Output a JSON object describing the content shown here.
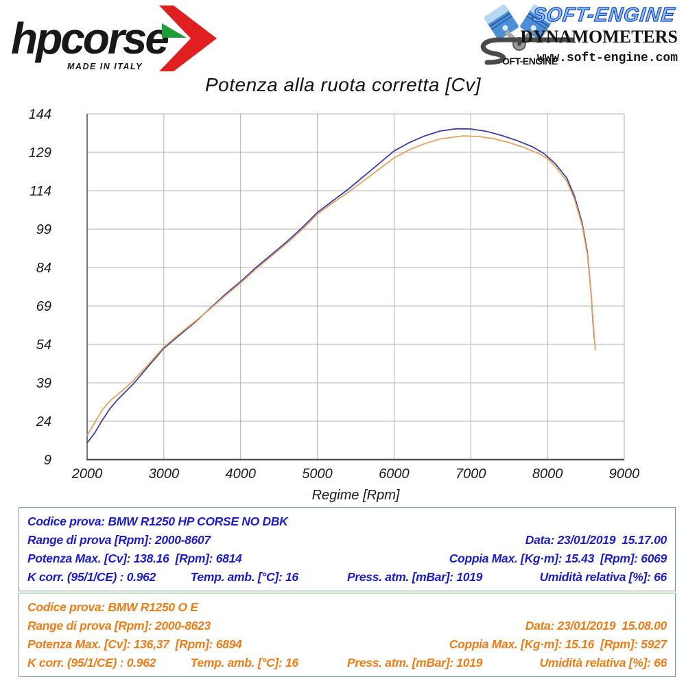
{
  "header": {
    "hpcorse": {
      "wordmark": "hpcorse",
      "made_in": "MADE IN ITALY",
      "arrow_red": "#e02020",
      "arrow_green": "#1f9b3a"
    },
    "softengine": {
      "brand": "SOFT-ENGINE",
      "s_tail_text": "OFT-ENGINE",
      "line2": "DYNAMOMETERS",
      "line3": "www.soft-engine.com",
      "brand_fill": "#8fc1f0",
      "brand_outline": "#1a49c8"
    }
  },
  "title": "Potenza alla ruota corretta [Cv]",
  "chart_data": {
    "type": "line",
    "title": "Potenza alla ruota corretta [Cv]",
    "xlabel": "Regime [Rpm]",
    "ylabel": "",
    "xlim": [
      2000,
      9000
    ],
    "ylim": [
      9,
      144
    ],
    "xticks": [
      2000,
      3000,
      4000,
      5000,
      6000,
      7000,
      8000,
      9000
    ],
    "yticks": [
      9,
      24,
      39,
      54,
      69,
      84,
      99,
      114,
      129,
      144
    ],
    "grid": true,
    "legend": "none",
    "grid_color": "#b0b0b0",
    "axis_color": "#555555",
    "series": [
      {
        "name": "BMW R1250 HP CORSE NO DBK",
        "color": "#3c3caa",
        "points": [
          [
            2000,
            15.5
          ],
          [
            2100,
            19.5
          ],
          [
            2200,
            24.5
          ],
          [
            2300,
            29
          ],
          [
            2400,
            32.5
          ],
          [
            2500,
            35.5
          ],
          [
            2600,
            38.5
          ],
          [
            2700,
            42
          ],
          [
            2800,
            45.5
          ],
          [
            2900,
            49
          ],
          [
            3000,
            52.5
          ],
          [
            3200,
            57.5
          ],
          [
            3400,
            62.5
          ],
          [
            3600,
            68
          ],
          [
            3800,
            73.5
          ],
          [
            4000,
            78.5
          ],
          [
            4200,
            84
          ],
          [
            4400,
            89
          ],
          [
            4600,
            94
          ],
          [
            4800,
            99.5
          ],
          [
            5000,
            105.5
          ],
          [
            5200,
            110
          ],
          [
            5400,
            114.5
          ],
          [
            5600,
            119.5
          ],
          [
            5800,
            124.5
          ],
          [
            6000,
            129.5
          ],
          [
            6200,
            132.8
          ],
          [
            6400,
            135.4
          ],
          [
            6600,
            137.3
          ],
          [
            6814,
            138.2
          ],
          [
            7000,
            138.1
          ],
          [
            7200,
            137.2
          ],
          [
            7400,
            135.6
          ],
          [
            7600,
            133.6
          ],
          [
            7800,
            131.2
          ],
          [
            7950,
            128.6
          ],
          [
            8100,
            124.6
          ],
          [
            8250,
            119
          ],
          [
            8350,
            112
          ],
          [
            8450,
            101.5
          ],
          [
            8520,
            90
          ],
          [
            8570,
            73
          ],
          [
            8607,
            56.5
          ]
        ]
      },
      {
        "name": "BMW R1250 O E",
        "color": "#e2a35c",
        "points": [
          [
            2000,
            18.5
          ],
          [
            2100,
            23.5
          ],
          [
            2200,
            28.5
          ],
          [
            2300,
            32
          ],
          [
            2400,
            34.5
          ],
          [
            2500,
            37
          ],
          [
            2600,
            39.8
          ],
          [
            2700,
            43
          ],
          [
            2800,
            46.2
          ],
          [
            2900,
            49.6
          ],
          [
            3000,
            53
          ],
          [
            3200,
            58
          ],
          [
            3400,
            62.8
          ],
          [
            3600,
            67.8
          ],
          [
            3800,
            73
          ],
          [
            4000,
            78
          ],
          [
            4200,
            83.4
          ],
          [
            4400,
            88.4
          ],
          [
            4600,
            93.4
          ],
          [
            4800,
            98.8
          ],
          [
            5000,
            104.8
          ],
          [
            5200,
            109.2
          ],
          [
            5400,
            113.3
          ],
          [
            5600,
            117.8
          ],
          [
            5800,
            122.3
          ],
          [
            6000,
            126.8
          ],
          [
            6200,
            130
          ],
          [
            6400,
            132.4
          ],
          [
            6600,
            134.2
          ],
          [
            6894,
            135.4
          ],
          [
            7100,
            135.2
          ],
          [
            7300,
            134.3
          ],
          [
            7500,
            132.8
          ],
          [
            7700,
            130.8
          ],
          [
            7900,
            128.3
          ],
          [
            8000,
            126.5
          ],
          [
            8100,
            123.5
          ],
          [
            8250,
            117.8
          ],
          [
            8350,
            110.8
          ],
          [
            8450,
            100.5
          ],
          [
            8520,
            89
          ],
          [
            8570,
            73
          ],
          [
            8623,
            51.5
          ]
        ]
      }
    ]
  },
  "tables": [
    {
      "color": "#1c1ccd",
      "codice": "Codice prova: BMW R1250 HP CORSE NO DBK",
      "range": "Range di prova [Rpm]: 2000-8607",
      "data": "Data: 23/01/2019  15.17.00",
      "potenza": "Potenza Max. [Cv]: 138.16  [Rpm]: 6814",
      "coppia": "Coppia Max. [Kg·m]: 15.43  [Rpm]: 6069",
      "kcorr": "K corr. (95/1/CE) : 0.962",
      "temp": "Temp. amb. [°C]: 16",
      "press": "Press. atm. [mBar]: 1019",
      "umidita": "Umidità relativa [%]: 66"
    },
    {
      "color": "#ee7d18",
      "codice": "Codice prova: BMW R1250 O E",
      "range": "Range di prova [Rpm]: 2000-8623",
      "data": "Data: 23/01/2019  15.08.00",
      "potenza": "Potenza Max. [Cv]: 136,37  [Rpm]: 6894",
      "coppia": "Coppia Max. [Kg·m]: 15.16  [Rpm]: 5927",
      "kcorr": "K corr. (95/1/CE) : 0.962",
      "temp": "Temp. amb. [°C]: 16",
      "press": "Press. atm. [mBar]: 1019",
      "umidita": "Umidità relativa [%]: 66"
    }
  ]
}
